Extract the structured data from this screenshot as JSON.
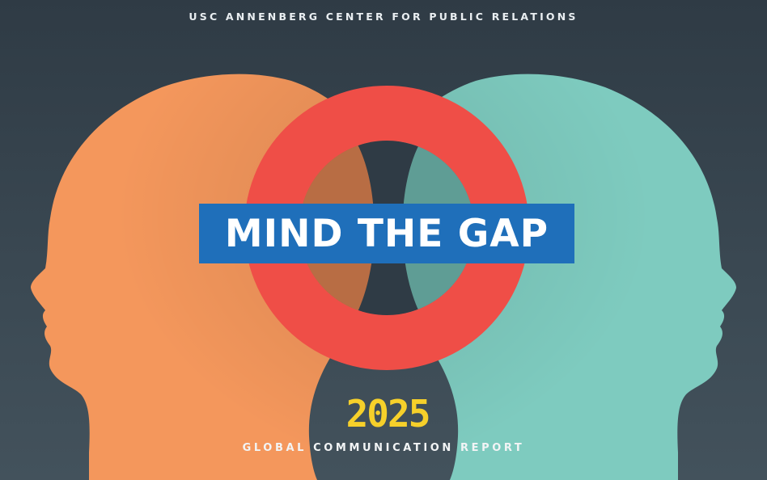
{
  "header": {
    "organization": "USC ANNENBERG CENTER FOR PUBLIC RELATIONS"
  },
  "cover": {
    "title": "MIND THE GAP",
    "year": "2025",
    "subtitle": "GLOBAL COMMUNICATION REPORT"
  },
  "colors": {
    "background": "#333f49",
    "left_head": "#f4975c",
    "right_head": "#7ecbbf",
    "ring": "#ef4e47",
    "banner": "#1f6fba",
    "year": "#f6d02a"
  },
  "icons": {
    "left_figure": "head-silhouette-facing-left",
    "right_figure": "head-silhouette-facing-right",
    "ring": "roundel-ring"
  }
}
